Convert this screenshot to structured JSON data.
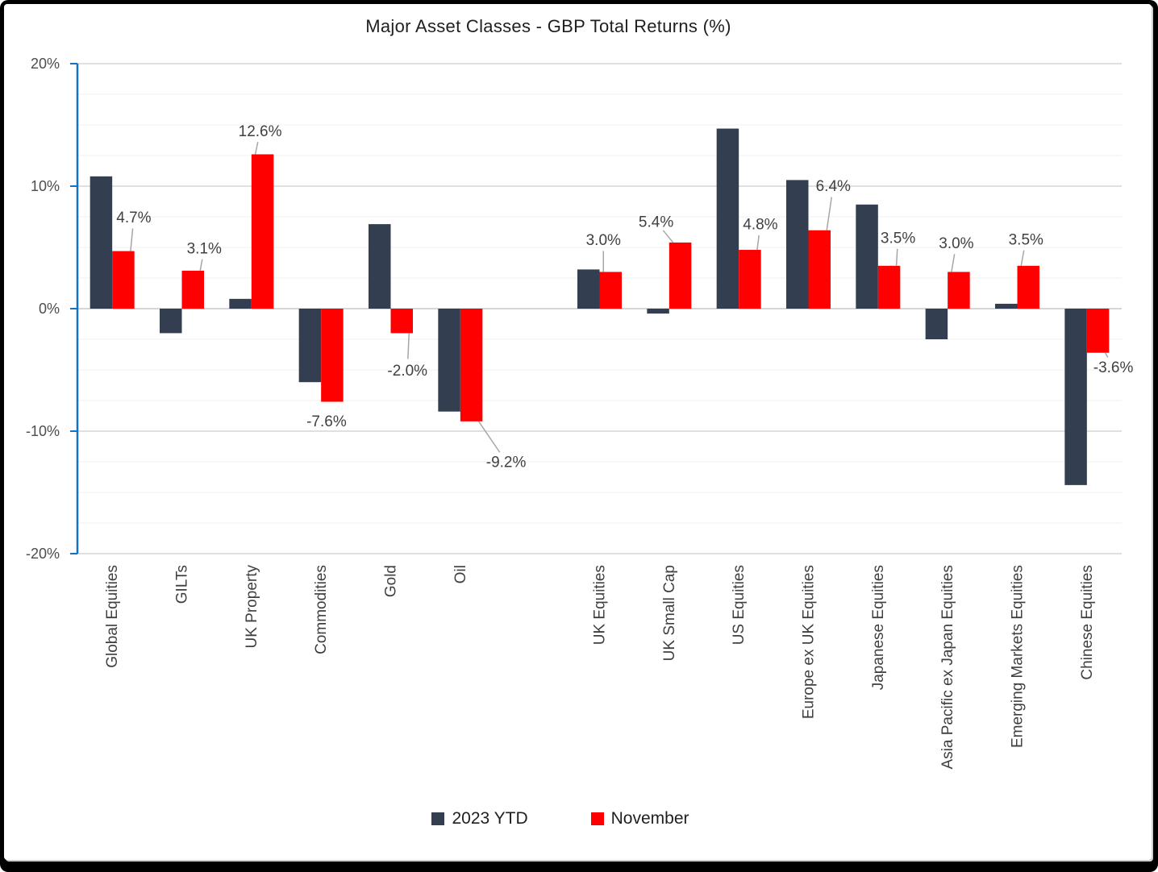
{
  "chart_data": {
    "type": "bar",
    "title": "Major Asset Classes - GBP Total Returns (%)",
    "categories": [
      "Global Equities",
      "GILTs",
      "UK Property",
      "Commodities",
      "Gold",
      "Oil",
      "UK Equities",
      "UK Small Cap",
      "US Equities",
      "Europe ex UK Equities",
      "Japanese Equities",
      "Asia Pacific ex Japan Equities",
      "Emerging Markets Equities",
      "Chinese Equities"
    ],
    "series": [
      {
        "name": "2023 YTD",
        "color": "#333F50",
        "values": [
          10.8,
          -2.0,
          0.8,
          -6.0,
          6.9,
          -8.4,
          3.2,
          -0.4,
          14.7,
          10.5,
          8.5,
          -2.5,
          0.4,
          -14.4
        ]
      },
      {
        "name": "November",
        "color": "#FF0000",
        "values": [
          4.7,
          3.1,
          12.6,
          -7.6,
          -2.0,
          -9.2,
          3.0,
          5.4,
          4.8,
          6.4,
          3.5,
          3.0,
          3.5,
          -3.6
        ],
        "data_labels": [
          "4.7%",
          "3.1%",
          "12.6%",
          "-7.6%",
          "-2.0%",
          "-9.2%",
          "3.0%",
          "5.4%",
          "4.8%",
          "6.4%",
          "3.5%",
          "3.0%",
          "3.5%",
          "-3.6%"
        ]
      }
    ],
    "y_axis": {
      "min": -20,
      "max": 20,
      "major_unit": 10,
      "minor_unit": 2.5,
      "tick_labels": [
        "20%",
        "10%",
        "0%",
        "-10%",
        "-20%"
      ]
    },
    "spacer_after_index": 5,
    "grid": true,
    "legend_position": "bottom",
    "colors": {
      "axis_line": "#1273C4",
      "major_gridline": "#D6D6D6",
      "minor_gridline": "#F1F1F1",
      "data_label_text": "#404040",
      "leader_line": "#A6A6A6",
      "tick_label_text": "#4D4D4D",
      "category_label_text": "#3F3F3F"
    }
  }
}
